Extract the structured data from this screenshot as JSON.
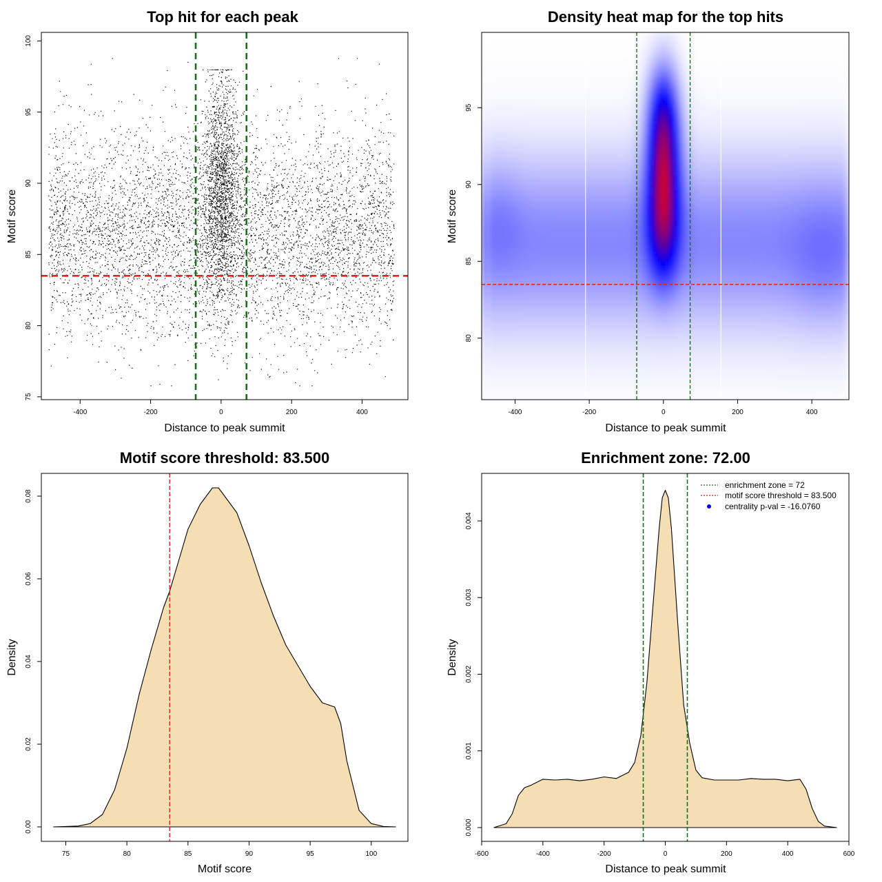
{
  "chart_data": [
    {
      "type": "scatter",
      "title": "Top hit for each peak",
      "xlabel": "Distance to peak summit",
      "ylabel": "Motif score",
      "xlim": [
        -510,
        530
      ],
      "ylim": [
        74.8,
        100.6
      ],
      "xticks": [
        -400,
        -200,
        0,
        200,
        400
      ],
      "yticks": [
        75,
        80,
        85,
        90,
        95,
        100
      ],
      "point_color": "#000000",
      "hlines": [
        {
          "value": 83.5,
          "color": "#dd2222"
        }
      ],
      "vlines": [
        {
          "value": -72,
          "color": "#1a6e1a"
        },
        {
          "value": 72,
          "color": "#1a6e1a"
        }
      ],
      "distribution": {
        "background": {
          "count": 5600,
          "x_range": [
            -490,
            490
          ],
          "y_mean": 86.5,
          "y_sd": 3.6,
          "y_range": [
            75.8,
            98.8
          ]
        },
        "central": {
          "count": 1900,
          "x_mean": 0,
          "x_sd": 26,
          "x_range": [
            -70,
            72
          ],
          "y_mean": 89.5,
          "y_sd": 4.0,
          "y_range": [
            76,
            98
          ]
        }
      }
    },
    {
      "type": "heatmap",
      "title": "Density heat map for the top hits",
      "xlabel": "Distance to peak summit",
      "ylabel": "Motif score",
      "xlim": [
        -490,
        500
      ],
      "ylim": [
        76,
        99.9
      ],
      "xticks": [
        -400,
        -200,
        0,
        200,
        400
      ],
      "yticks": [
        80,
        85,
        90,
        95
      ],
      "color_scale": [
        "#ffffff",
        "#0000ff",
        "#ff0000"
      ],
      "hlines": [
        {
          "value": 83.5,
          "color": "#dd2222"
        }
      ],
      "vlines": [
        {
          "value": -72,
          "color": "#1a6e1a"
        },
        {
          "value": 72,
          "color": "#1a6e1a"
        }
      ],
      "white_vlines": [
        -210,
        155
      ]
    },
    {
      "type": "area",
      "title": "Motif score threshold: 83.500",
      "xlabel": "Motif score",
      "ylabel": "Density",
      "xlim": [
        73,
        103
      ],
      "ylim": [
        -0.0035,
        0.0855
      ],
      "xticks": [
        75,
        80,
        85,
        90,
        95,
        100
      ],
      "yticks": [
        0.0,
        0.02,
        0.04,
        0.06,
        0.08
      ],
      "ytick_labels": [
        "0.00",
        "0.02",
        "0.04",
        "0.06",
        "0.08"
      ],
      "fill": "#f5deb3",
      "x": [
        74,
        76,
        77,
        78,
        79,
        80,
        81,
        82,
        83,
        83.5,
        84,
        85,
        86,
        87,
        87.5,
        88,
        89,
        90,
        91,
        92,
        93,
        94,
        95,
        96,
        97,
        97.5,
        98,
        99,
        100,
        101,
        102
      ],
      "y": [
        0.0,
        0.0002,
        0.0008,
        0.003,
        0.009,
        0.019,
        0.032,
        0.043,
        0.053,
        0.057,
        0.062,
        0.072,
        0.078,
        0.082,
        0.082,
        0.08,
        0.076,
        0.068,
        0.059,
        0.051,
        0.044,
        0.039,
        0.034,
        0.03,
        0.029,
        0.025,
        0.016,
        0.004,
        0.0008,
        0.0001,
        0.0
      ],
      "vlines": [
        {
          "value": 83.5,
          "color": "#dd2222"
        }
      ]
    },
    {
      "type": "area",
      "title": "Enrichment zone: 72.00",
      "xlabel": "Distance to peak summit",
      "ylabel": "Density",
      "xlim": [
        -600,
        600
      ],
      "ylim": [
        -0.00018,
        0.00462
      ],
      "xticks": [
        -600,
        -400,
        -200,
        0,
        200,
        400,
        600
      ],
      "yticks": [
        0.0,
        0.001,
        0.002,
        0.003,
        0.004
      ],
      "ytick_labels": [
        "0.000",
        "0.001",
        "0.002",
        "0.003",
        "0.004"
      ],
      "fill": "#f5deb3",
      "x": [
        -560,
        -520,
        -500,
        -480,
        -460,
        -440,
        -400,
        -360,
        -320,
        -280,
        -240,
        -200,
        -160,
        -120,
        -100,
        -80,
        -60,
        -40,
        -20,
        -10,
        0,
        10,
        20,
        40,
        60,
        80,
        100,
        120,
        160,
        200,
        240,
        280,
        320,
        360,
        400,
        440,
        460,
        480,
        500,
        520,
        560
      ],
      "y": [
        0.0,
        5e-05,
        0.00018,
        0.00042,
        0.00052,
        0.00055,
        0.00063,
        0.00062,
        0.00063,
        0.00061,
        0.00063,
        0.00066,
        0.00064,
        0.00072,
        0.00085,
        0.0012,
        0.0019,
        0.0029,
        0.0039,
        0.0043,
        0.0044,
        0.0043,
        0.0039,
        0.0027,
        0.0016,
        0.0011,
        0.00075,
        0.00065,
        0.00062,
        0.00062,
        0.00062,
        0.00064,
        0.00063,
        0.00063,
        0.00061,
        0.00063,
        0.0005,
        0.00025,
        8e-05,
        2e-05,
        0.0
      ],
      "vlines": [
        {
          "value": -72,
          "color": "#1a6e1a"
        },
        {
          "value": 72,
          "color": "#1a6e1a"
        }
      ],
      "legend": {
        "placement": "top-right",
        "entries": [
          {
            "label": "enrichment zone = 72",
            "color": "#1a6e1a",
            "marker": "dotted-line"
          },
          {
            "label": "motif score threshold = 83.500",
            "color": "#dd2222",
            "marker": "dotted-line"
          },
          {
            "label": "centrality p-val = -16.0760",
            "color": "#0000ff",
            "marker": "dot"
          }
        ]
      }
    }
  ]
}
